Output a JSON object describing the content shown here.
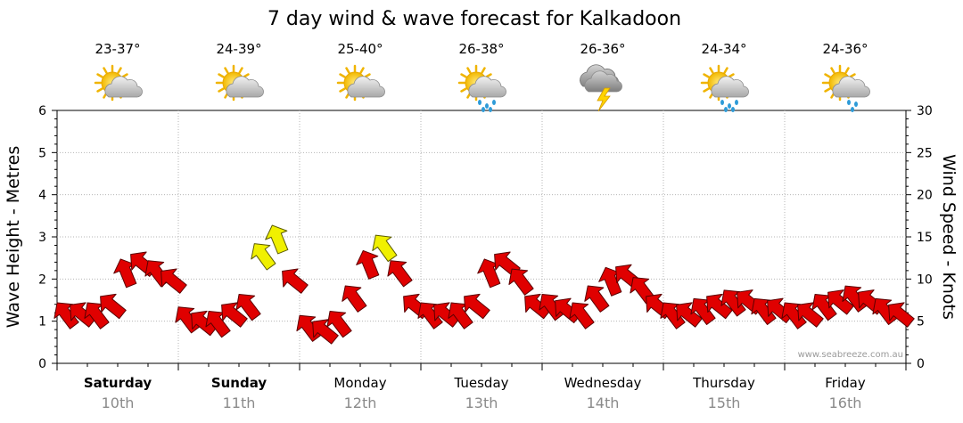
{
  "chart_data": {
    "type": "line",
    "title": "7 day wind & wave forecast for Kalkadoon",
    "ylabel_left": "Wave Height - Metres",
    "ylabel_right": "Wind Speed - Knots",
    "ylim_left": [
      0,
      6
    ],
    "ylim_right": [
      0,
      30
    ],
    "yticks_left": [
      "0",
      "1",
      "2",
      "3",
      "4",
      "5",
      "6"
    ],
    "yticks_right": [
      "0",
      "5",
      "10",
      "15",
      "20",
      "25",
      "30"
    ],
    "days": [
      {
        "name": "Saturday",
        "date": "10th",
        "bold": true,
        "temp": "23-37°",
        "weather": "partly-cloudy-icon"
      },
      {
        "name": "Sunday",
        "date": "11th",
        "bold": true,
        "temp": "24-39°",
        "weather": "partly-cloudy-icon"
      },
      {
        "name": "Monday",
        "date": "12th",
        "bold": false,
        "temp": "25-40°",
        "weather": "partly-cloudy-icon"
      },
      {
        "name": "Tuesday",
        "date": "13th",
        "bold": false,
        "temp": "26-38°",
        "weather": "showers-icon"
      },
      {
        "name": "Wednesday",
        "date": "14th",
        "bold": false,
        "temp": "26-36°",
        "weather": "thunderstorm-icon"
      },
      {
        "name": "Thursday",
        "date": "15th",
        "bold": false,
        "temp": "24-34°",
        "weather": "showers-icon"
      },
      {
        "name": "Friday",
        "date": "16th",
        "bold": false,
        "temp": "24-36°",
        "weather": "light-showers-icon"
      }
    ],
    "series": [
      {
        "name": "Wind Speed (knots)",
        "note": "one value per 3 hours, 8 per day, starting Saturday 00:00",
        "values": [
          6,
          6,
          6,
          7,
          11,
          12,
          11,
          10,
          5.5,
          5,
          5,
          6,
          7,
          13,
          15,
          10,
          4.5,
          4,
          5,
          8,
          12,
          14,
          11,
          7,
          6,
          6,
          6,
          7,
          11,
          12,
          10,
          7,
          7,
          6.5,
          6,
          8,
          10,
          10.5,
          9,
          7,
          6,
          6,
          6.5,
          7,
          7.5,
          7.5,
          6.5,
          6.5,
          6,
          6,
          7,
          7.5,
          8,
          7.5,
          6.5,
          6
        ],
        "color_low": "#e00000",
        "color_high": "#f0f000"
      }
    ],
    "highlight_threshold_knots": 13,
    "watermark": "www.seabreeze.com.au"
  }
}
